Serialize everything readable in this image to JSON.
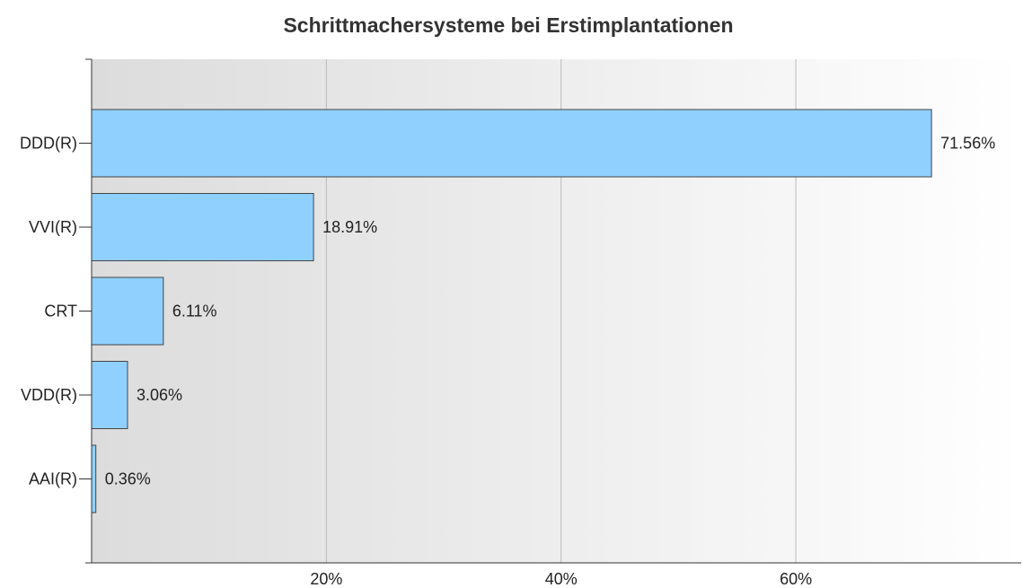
{
  "chart_data": {
    "type": "bar",
    "orientation": "horizontal",
    "title": "Schrittmachersysteme bei Erstimplantationen",
    "xlabel": "",
    "ylabel": "",
    "categories": [
      "DDD(R)",
      "VVI(R)",
      "CRT",
      "VDD(R)",
      "AAI(R)"
    ],
    "values": [
      71.56,
      18.91,
      6.11,
      3.06,
      0.36
    ],
    "value_labels": [
      "71.56%",
      "18.91%",
      "6.11%",
      "3.06%",
      "0.36%"
    ],
    "xlim": [
      0,
      79.2
    ],
    "x_ticks": [
      20,
      40,
      60
    ],
    "x_tick_labels": [
      "20%",
      "40%",
      "60%"
    ],
    "grid": true,
    "legend": "none",
    "colors": {
      "bar_fill": "#90d0ff",
      "bar_stroke": "#444444",
      "grid": "#bbbbbb",
      "axis": "#333333",
      "plot_bg_start": "#dcdcdc",
      "plot_bg_end": "#ffffff"
    }
  }
}
